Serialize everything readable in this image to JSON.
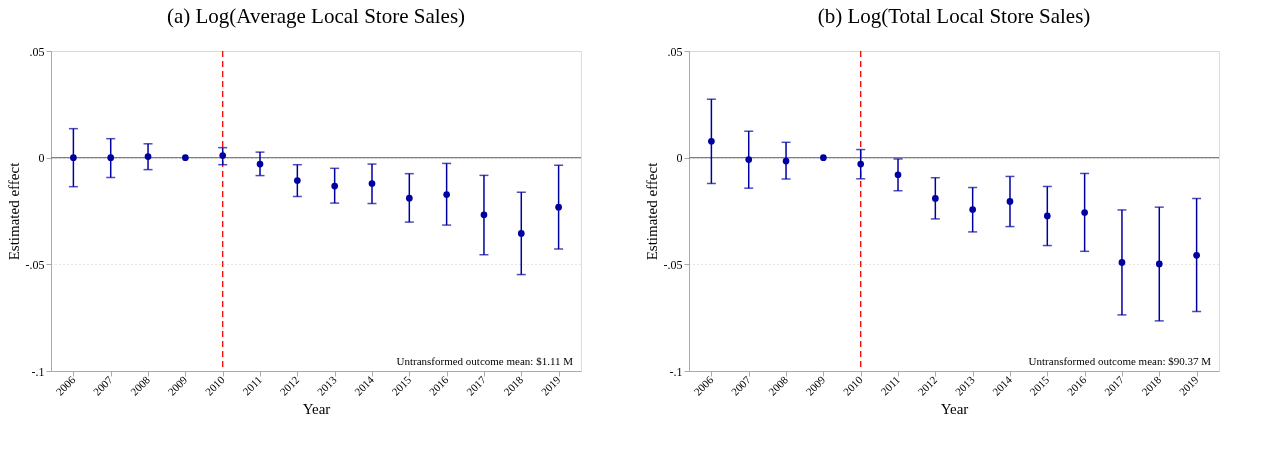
{
  "chart_data": [
    {
      "type": "scatter",
      "title": "(a) Log(Average Local Store Sales)",
      "xlabel": "Year",
      "ylabel": "Estimated effect",
      "categories": [
        "2006",
        "2007",
        "2008",
        "2009",
        "2010",
        "2011",
        "2012",
        "2013",
        "2014",
        "2015",
        "2016",
        "2017",
        "2018",
        "2019"
      ],
      "series": [
        {
          "color": "#0000a0",
          "values": [
            0,
            0,
            0.0005,
            0,
            0.001,
            -0.003,
            -0.0107,
            -0.0133,
            -0.0121,
            -0.019,
            -0.0173,
            -0.0268,
            -0.0355,
            -0.0232
          ],
          "errors": [
            [
              -0.0136,
              0.0136
            ],
            [
              -0.0093,
              0.0089
            ],
            [
              -0.0056,
              0.0065
            ],
            null,
            [
              -0.0033,
              0.0047
            ],
            [
              -0.0084,
              0.0026
            ],
            [
              -0.0182,
              -0.0033
            ],
            [
              -0.0213,
              -0.005
            ],
            [
              -0.0215,
              -0.003
            ],
            [
              -0.0302,
              -0.0075
            ],
            [
              -0.0316,
              -0.0027
            ],
            [
              -0.0455,
              -0.0083
            ],
            [
              -0.0548,
              -0.0162
            ],
            [
              -0.0428,
              -0.0036
            ]
          ]
        }
      ],
      "ylim": [
        -0.1,
        0.05
      ],
      "yticks": [
        {
          "value": 0.05,
          "label": ".05"
        },
        0,
        {
          "value": -0.05,
          "label": "-.05"
        },
        {
          "value": -0.1,
          "label": "-.1"
        }
      ],
      "grid": "y",
      "marker": "circle",
      "ref_lines": [
        {
          "axis": "y",
          "value": 0,
          "color": "#808080",
          "line_style": "solid"
        },
        {
          "axis": "x",
          "value": "2010",
          "color": "#ff0000",
          "line_style": "dashed"
        }
      ],
      "annotations": [
        "Untransformed outcome mean: $1.11 M"
      ]
    },
    {
      "type": "scatter",
      "title": "(b) Log(Total Local Store Sales)",
      "xlabel": "Year",
      "ylabel": "Estimated effect",
      "categories": [
        "2006",
        "2007",
        "2008",
        "2009",
        "2010",
        "2011",
        "2012",
        "2013",
        "2014",
        "2015",
        "2016",
        "2017",
        "2018",
        "2019"
      ],
      "series": [
        {
          "color": "#0000a0",
          "values": [
            0.0077,
            -0.0009,
            -0.0016,
            0,
            -0.003,
            -0.008,
            -0.0191,
            -0.0243,
            -0.0205,
            -0.0273,
            -0.0257,
            -0.0491,
            -0.0498,
            -0.0458
          ],
          "errors": [
            [
              -0.0121,
              0.0274
            ],
            [
              -0.0143,
              0.0124
            ],
            [
              -0.01,
              0.0072
            ],
            null,
            [
              -0.0099,
              0.0038
            ],
            [
              -0.0155,
              -0.0006
            ],
            [
              -0.0287,
              -0.0094
            ],
            [
              -0.0348,
              -0.014
            ],
            [
              -0.0323,
              -0.0088
            ],
            [
              -0.0412,
              -0.0135
            ],
            [
              -0.0439,
              -0.0074
            ],
            [
              -0.0737,
              -0.0245
            ],
            [
              -0.0765,
              -0.0232
            ],
            [
              -0.0721,
              -0.0191
            ]
          ]
        }
      ],
      "ylim": [
        -0.1,
        0.05
      ],
      "yticks": [
        {
          "value": 0.05,
          "label": ".05"
        },
        0,
        {
          "value": -0.05,
          "label": "-.05"
        },
        {
          "value": -0.1,
          "label": "-.1"
        }
      ],
      "grid": "y",
      "marker": "circle",
      "ref_lines": [
        {
          "axis": "y",
          "value": 0,
          "color": "#808080",
          "line_style": "solid"
        },
        {
          "axis": "x",
          "value": "2010",
          "color": "#ff0000",
          "line_style": "dashed"
        }
      ],
      "annotations": [
        "Untransformed outcome mean: $90.37 M"
      ]
    }
  ]
}
